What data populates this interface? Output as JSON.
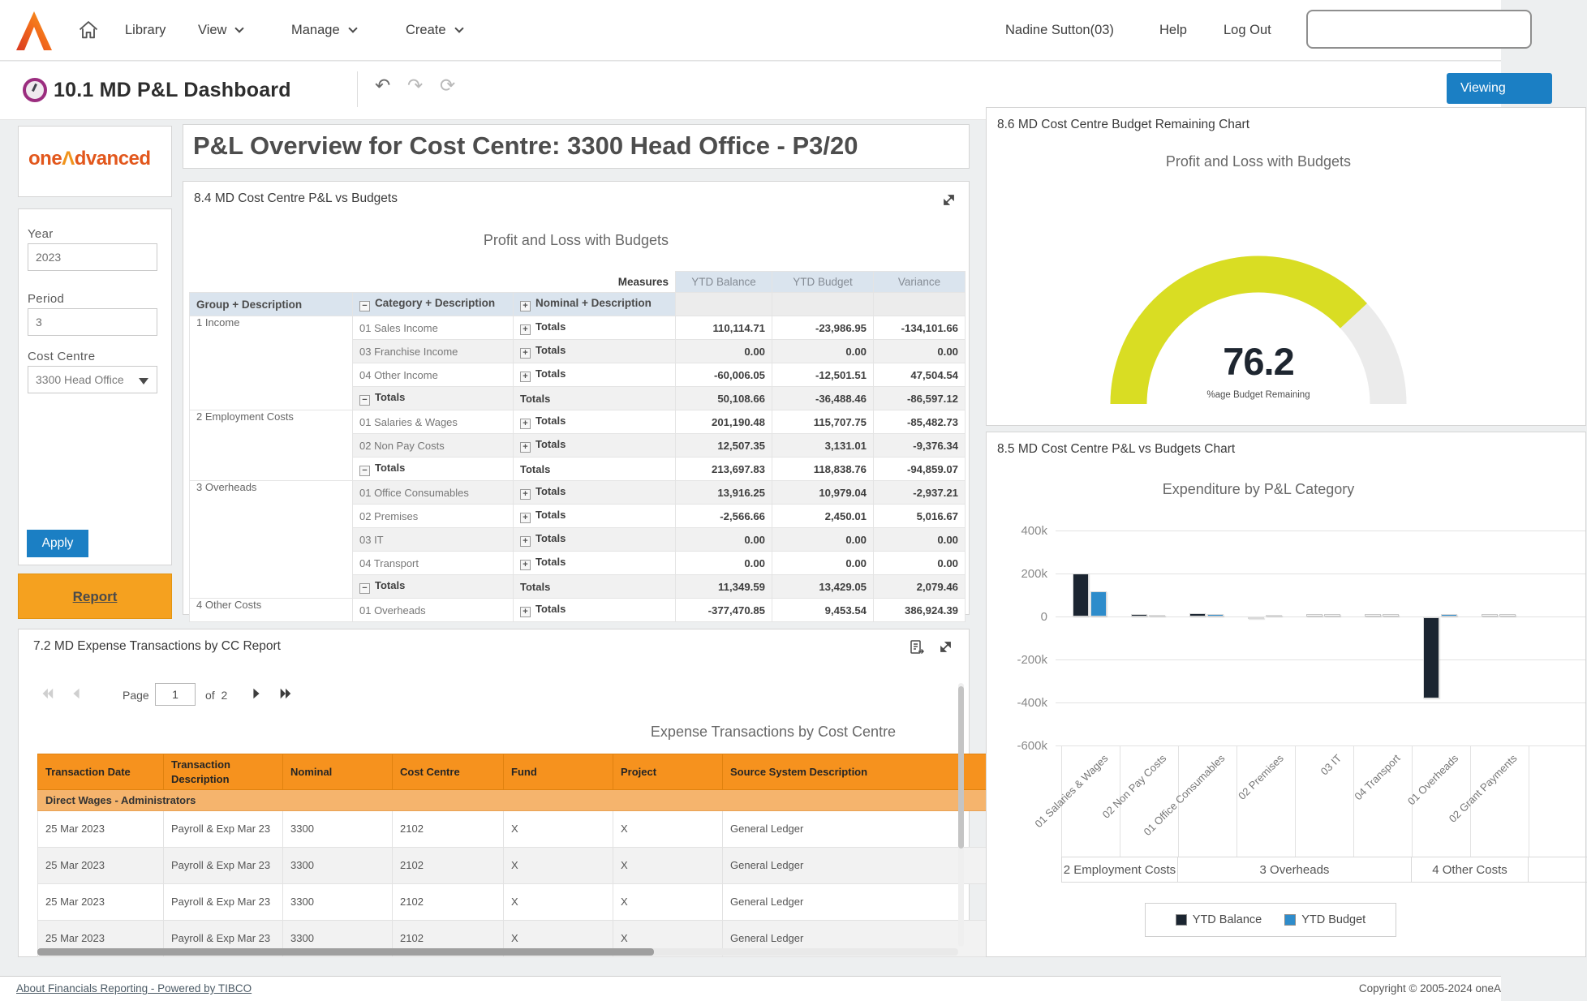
{
  "nav": {
    "items": [
      {
        "label": "Library",
        "dropdown": false
      },
      {
        "label": "View",
        "dropdown": true
      },
      {
        "label": "Manage",
        "dropdown": true
      },
      {
        "label": "Create",
        "dropdown": true
      }
    ],
    "user": "Nadine Sutton(03)",
    "help": "Help",
    "logout": "Log Out",
    "search_value": ""
  },
  "titlebar": {
    "title": "10.1 MD P&L Dashboard",
    "viewing_button": "Viewing"
  },
  "sidebar": {
    "logo_one": "one",
    "logo_caret": "Λ",
    "logo_rest": "dvanced",
    "year_label": "Year",
    "year_value": "2023",
    "period_label": "Period",
    "period_value": "3",
    "cost_centre_label": "Cost Centre",
    "cost_centre_value": "3300 Head Office",
    "apply_label": "Apply",
    "report_label": "Report"
  },
  "overview": {
    "title": "P&L Overview for Cost Centre: 3300 Head Office - P3/20"
  },
  "pnl": {
    "panel_title": "8.4 MD Cost Centre P&L vs Budgets",
    "chart_title": "Profit and Loss with Budgets",
    "measures_label": "Measures",
    "col_group": "Group + Description",
    "col_category": "Category + Description",
    "col_nominal": "Nominal + Description",
    "measure_cols": [
      "YTD Balance",
      "YTD Budget",
      "Variance"
    ],
    "rows": [
      {
        "group": "1 Income",
        "category": "01 Sales Income",
        "nominal": "Totals",
        "balance": "110,114.71",
        "budget": "-23,986.95",
        "variance": "-134,101.66"
      },
      {
        "category": "03 Franchise Income",
        "nominal": "Totals",
        "balance": "0.00",
        "budget": "0.00",
        "variance": "0.00"
      },
      {
        "category": "04 Other Income",
        "nominal": "Totals",
        "balance": "-60,006.05",
        "budget": "-12,501.51",
        "variance": "47,504.54"
      },
      {
        "category": "Totals",
        "nominal": "Totals",
        "balance": "50,108.66",
        "budget": "-36,488.46",
        "variance": "-86,597.12"
      },
      {
        "group": "2 Employment Costs",
        "category": "01 Salaries & Wages",
        "nominal": "Totals",
        "balance": "201,190.48",
        "budget": "115,707.75",
        "variance": "-85,482.73"
      },
      {
        "category": "02 Non Pay Costs",
        "nominal": "Totals",
        "balance": "12,507.35",
        "budget": "3,131.01",
        "variance": "-9,376.34"
      },
      {
        "category": "Totals",
        "nominal": "Totals",
        "balance": "213,697.83",
        "budget": "118,838.76",
        "variance": "-94,859.07"
      },
      {
        "group": "3 Overheads",
        "category": "01 Office Consumables",
        "nominal": "Totals",
        "balance": "13,916.25",
        "budget": "10,979.04",
        "variance": "-2,937.21"
      },
      {
        "category": "02 Premises",
        "nominal": "Totals",
        "balance": "-2,566.66",
        "budget": "2,450.01",
        "variance": "5,016.67"
      },
      {
        "category": "03 IT",
        "nominal": "Totals",
        "balance": "0.00",
        "budget": "0.00",
        "variance": "0.00"
      },
      {
        "category": "04 Transport",
        "nominal": "Totals",
        "balance": "0.00",
        "budget": "0.00",
        "variance": "0.00"
      },
      {
        "category": "Totals",
        "nominal": "Totals",
        "balance": "11,349.59",
        "budget": "13,429.05",
        "variance": "2,079.46"
      },
      {
        "group": "4 Other Costs",
        "category": "01 Overheads",
        "nominal": "Totals",
        "balance": "-377,470.85",
        "budget": "9,453.54",
        "variance": "386,924.39"
      }
    ]
  },
  "expense": {
    "panel_title": "7.2 MD Expense Transactions by CC Report",
    "page_label": "Page",
    "page_value": "1",
    "of_label": "of",
    "page_total": "2",
    "table_title": "Expense Transactions by Cost Centre",
    "columns": [
      "Transaction Date",
      "Transaction Description",
      "Nominal",
      "Cost Centre",
      "Fund",
      "Project",
      "Source System Description"
    ],
    "group_label": "Direct Wages - Administrators",
    "rows": [
      {
        "date": "25 Mar 2023",
        "desc": "Payroll & Exp Mar 23",
        "nominal": "3300",
        "cost_centre": "2102",
        "fund": "X",
        "project": "X",
        "source": "General Ledger"
      },
      {
        "date": "25 Mar 2023",
        "desc": "Payroll & Exp Mar 23",
        "nominal": "3300",
        "cost_centre": "2102",
        "fund": "X",
        "project": "X",
        "source": "General Ledger"
      },
      {
        "date": "25 Mar 2023",
        "desc": "Payroll & Exp Mar 23",
        "nominal": "3300",
        "cost_centre": "2102",
        "fund": "X",
        "project": "X",
        "source": "General Ledger"
      },
      {
        "date": "25 Mar 2023",
        "desc": "Payroll & Exp Mar 23",
        "nominal": "3300",
        "cost_centre": "2102",
        "fund": "X",
        "project": "X",
        "source": "General Ledger"
      }
    ]
  },
  "gauge_card": {
    "panel_title": "8.6 MD Cost Centre Budget Remaining Chart"
  },
  "bar_card": {
    "panel_title": "8.5 MD Cost Centre P&L vs Budgets Chart"
  },
  "chart_data": [
    {
      "type": "gauge",
      "title": "Profit and Loss with Budgets",
      "value": 76.2,
      "label": "%age Budget Remaining",
      "min": 0,
      "max": 100,
      "color": "#d9dd23",
      "track_color": "#ebebeb"
    },
    {
      "type": "bar",
      "title": "Expenditure by P&L Category",
      "categories": [
        "01 Salaries & Wages",
        "02 Non Pay Costs",
        "01 Office Consumables",
        "02 Premises",
        "03 IT",
        "04 Transport",
        "01 Overheads",
        "02 Grant Payments"
      ],
      "series": [
        {
          "name": "YTD Balance",
          "color": "#1b2531",
          "values": [
            201190.48,
            12507.35,
            13916.25,
            -2566.66,
            0,
            0,
            -377470.85,
            0
          ]
        },
        {
          "name": "YTD Budget",
          "color": "#2e8ccb",
          "values": [
            115707.75,
            3131.01,
            10979.04,
            2450.01,
            0,
            0,
            9453.54,
            0
          ]
        }
      ],
      "groups": [
        {
          "label": "2 Employment Costs",
          "span": 2
        },
        {
          "label": "3 Overheads",
          "span": 4
        },
        {
          "label": "4 Other Costs",
          "span": 2
        }
      ],
      "ylim": [
        -600000,
        400000
      ],
      "yticks": [
        "400k",
        "200k",
        "0",
        "-200k",
        "-400k",
        "-600k"
      ],
      "legend": [
        "YTD Balance",
        "YTD Budget"
      ],
      "legend_position": "bottom"
    }
  ],
  "footer": {
    "link": "About Financials Reporting - Powered by TIBCO",
    "copyright": "Copyright © 2005-2024 oneA"
  }
}
